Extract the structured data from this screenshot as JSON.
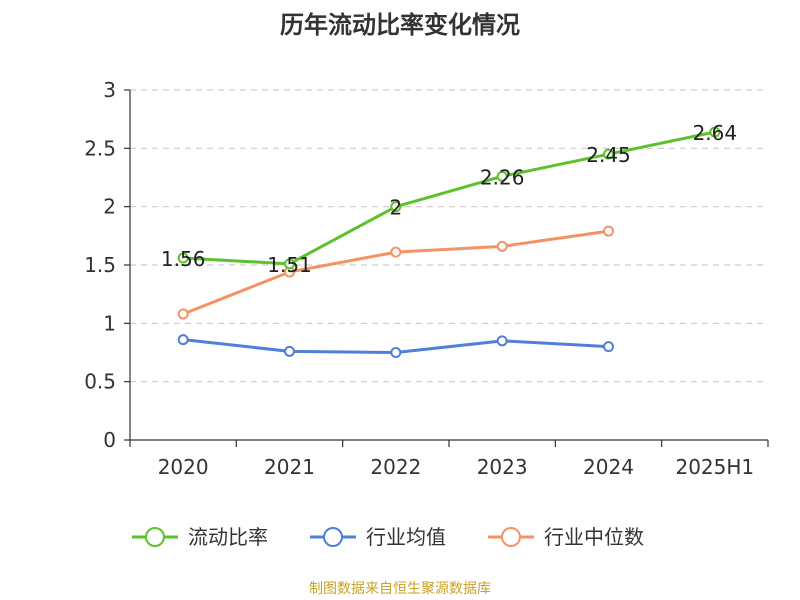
{
  "chart_data": {
    "type": "line",
    "title": "历年流动比率变化情况",
    "categories": [
      "2020",
      "2021",
      "2022",
      "2023",
      "2024",
      "2025H1"
    ],
    "ylim": [
      0,
      3
    ],
    "yticks": [
      "0",
      "0.5",
      "1",
      "1.5",
      "2",
      "2.5",
      "3"
    ],
    "grid": true,
    "legend_position": "bottom",
    "series": [
      {
        "name": "流动比率",
        "color": "#5cc12a",
        "values": [
          1.56,
          1.51,
          2,
          2.26,
          2.45,
          2.64
        ],
        "labels": [
          "1.56",
          "1.51",
          "2",
          "2.26",
          "2.45",
          "2.64"
        ]
      },
      {
        "name": "行业均值",
        "color": "#4f7fd8",
        "values": [
          0.86,
          0.76,
          0.75,
          0.85,
          0.8,
          null
        ]
      },
      {
        "name": "行业中位数",
        "color": "#f59263",
        "values": [
          1.08,
          1.44,
          1.61,
          1.66,
          1.79,
          null
        ]
      }
    ]
  },
  "source": "制图数据来自恒生聚源数据库"
}
